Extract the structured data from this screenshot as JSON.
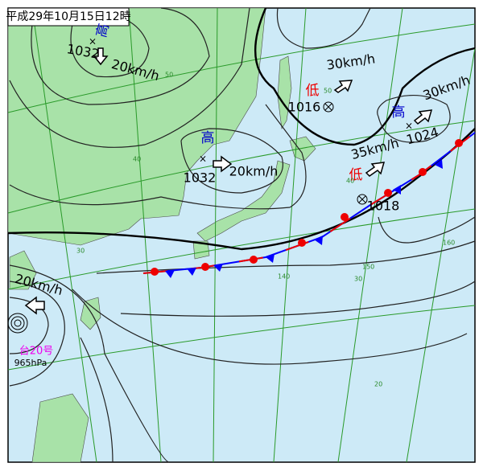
{
  "title": "平成29年10月15日12時",
  "systems": [
    {
      "kind": "高",
      "pressure": 1032,
      "motion": "20km/h"
    },
    {
      "kind": "高",
      "pressure": 1032,
      "motion": "20km/h"
    },
    {
      "kind": "低",
      "pressure": 1016,
      "motion": "30km/h"
    },
    {
      "kind": "高",
      "pressure": 1024,
      "motion": "30km/h"
    },
    {
      "kind": "低",
      "pressure": 1018,
      "motion": "35km/h"
    }
  ],
  "typhoon": {
    "name": "台20号",
    "pressure": "965hPa",
    "motion": "20km/h"
  },
  "grid_labels": [
    "50",
    "40",
    "30",
    "20",
    "140",
    "150",
    "160",
    "50",
    "40",
    "30"
  ]
}
